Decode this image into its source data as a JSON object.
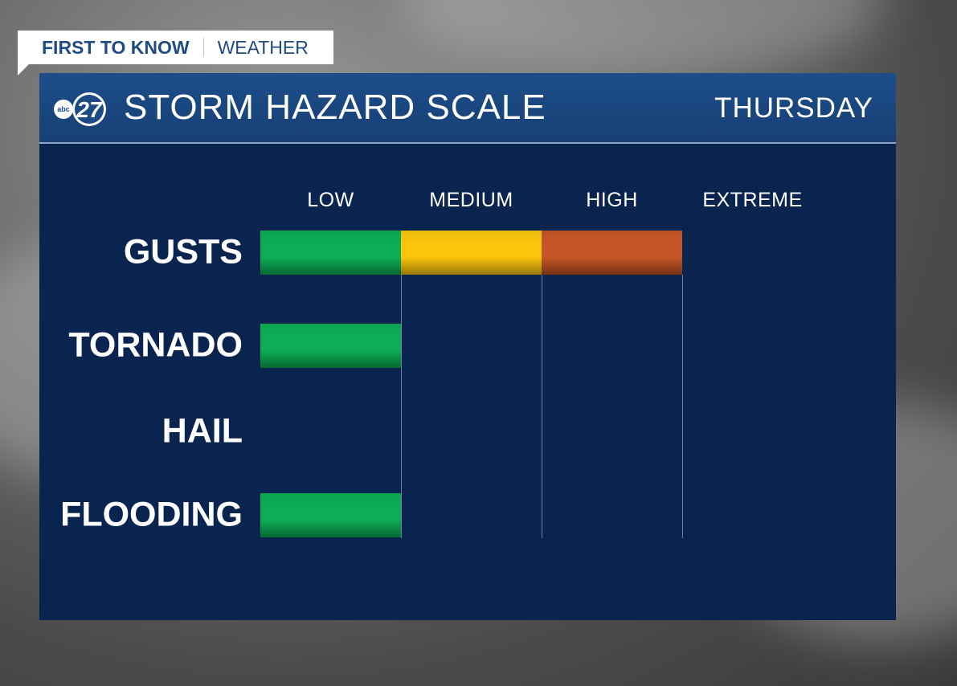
{
  "banner": {
    "brand": "FIRST TO KNOW",
    "section": "WEATHER"
  },
  "header": {
    "logo_text": "abc 27",
    "title": "STORM HAZARD SCALE",
    "day": "THURSDAY"
  },
  "chart_data": {
    "type": "bar",
    "title": "STORM HAZARD SCALE",
    "scale_levels": [
      "LOW",
      "MEDIUM",
      "HIGH",
      "EXTREME"
    ],
    "categories": [
      "GUSTS",
      "TORNADO",
      "HAIL",
      "FLOODING"
    ],
    "values": [
      3,
      1,
      0,
      1
    ],
    "xlim": [
      0,
      4
    ],
    "level_colors": [
      "#0cad55",
      "#fbc50c",
      "#c65526",
      "#000000"
    ]
  }
}
